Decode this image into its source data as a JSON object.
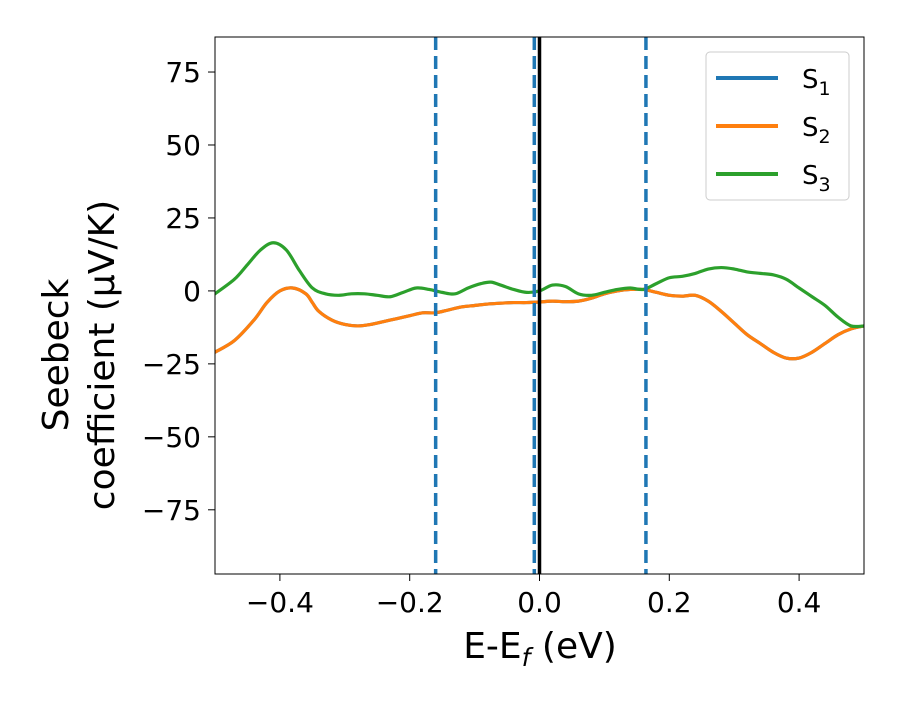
{
  "chart_data": {
    "type": "line",
    "xlabel": "E-E_f (eV)",
    "ylabel_line1": "Seebeck",
    "ylabel_line2": "coefficient  (μV/K)",
    "xlim": [
      -0.5,
      0.5
    ],
    "ylim": [
      -97,
      87
    ],
    "xticks": [
      -0.4,
      -0.2,
      0.0,
      0.2,
      0.4
    ],
    "xtick_labels": [
      "−0.4",
      "−0.2",
      "0.0",
      "0.2",
      "0.4"
    ],
    "yticks": [
      -75,
      -50,
      -25,
      0,
      25,
      50,
      75
    ],
    "ytick_labels": [
      "−75",
      "−50",
      "−25",
      "0",
      "25",
      "50",
      "75"
    ],
    "grid": false,
    "legend_position": "top-right",
    "vlines": [
      {
        "x": -0.16,
        "style": "dashed",
        "color": "#1f77b4"
      },
      {
        "x": -0.008,
        "style": "dashed",
        "color": "#1f77b4"
      },
      {
        "x": 0.0,
        "style": "solid",
        "color": "#000000"
      },
      {
        "x": 0.164,
        "style": "dashed",
        "color": "#1f77b4"
      }
    ],
    "series": [
      {
        "name": "S_1",
        "label_base": "S",
        "label_sub": "1",
        "color": "#1f77b4",
        "x": [
          -0.5,
          -0.47,
          -0.44,
          -0.42,
          -0.4,
          -0.38,
          -0.36,
          -0.35,
          -0.34,
          -0.32,
          -0.3,
          -0.28,
          -0.26,
          -0.24,
          -0.22,
          -0.2,
          -0.18,
          -0.16,
          -0.14,
          -0.12,
          -0.1,
          -0.08,
          -0.06,
          -0.04,
          -0.02,
          0.0,
          0.02,
          0.04,
          0.06,
          0.08,
          0.1,
          0.12,
          0.14,
          0.16,
          0.18,
          0.2,
          0.22,
          0.24,
          0.26,
          0.28,
          0.3,
          0.32,
          0.34,
          0.36,
          0.38,
          0.4,
          0.42,
          0.44,
          0.46,
          0.48,
          0.5
        ],
        "y": [
          -21,
          -17,
          -10,
          -4,
          0,
          1,
          -1,
          -4,
          -7,
          -10,
          -11.5,
          -12,
          -11.5,
          -10.5,
          -9.5,
          -8.5,
          -7.5,
          -7.5,
          -6.5,
          -5.5,
          -5,
          -4.5,
          -4.2,
          -4,
          -4,
          -3.8,
          -3.5,
          -3.7,
          -3.5,
          -2.5,
          -1,
          0,
          0.5,
          0.5,
          -0.5,
          -1.5,
          -1.8,
          -1.5,
          -3.5,
          -7,
          -11,
          -15,
          -18,
          -21,
          -23,
          -23,
          -21,
          -18,
          -15,
          -13,
          -12
        ]
      },
      {
        "name": "S_2",
        "label_base": "S",
        "label_sub": "2",
        "color": "#ff7f0e",
        "x": [
          -0.5,
          -0.47,
          -0.44,
          -0.42,
          -0.4,
          -0.38,
          -0.36,
          -0.35,
          -0.34,
          -0.32,
          -0.3,
          -0.28,
          -0.26,
          -0.24,
          -0.22,
          -0.2,
          -0.18,
          -0.16,
          -0.14,
          -0.12,
          -0.1,
          -0.08,
          -0.06,
          -0.04,
          -0.02,
          0.0,
          0.02,
          0.04,
          0.06,
          0.08,
          0.1,
          0.12,
          0.14,
          0.16,
          0.18,
          0.2,
          0.22,
          0.24,
          0.26,
          0.28,
          0.3,
          0.32,
          0.34,
          0.36,
          0.38,
          0.4,
          0.42,
          0.44,
          0.46,
          0.48,
          0.5
        ],
        "y": [
          -21,
          -17,
          -10,
          -4,
          0,
          1,
          -1,
          -4,
          -7,
          -10,
          -11.5,
          -12,
          -11.5,
          -10.5,
          -9.5,
          -8.5,
          -7.5,
          -7.5,
          -6.5,
          -5.5,
          -5,
          -4.5,
          -4.2,
          -4,
          -4,
          -3.8,
          -3.5,
          -3.7,
          -3.5,
          -2.5,
          -1,
          0,
          0.5,
          0.5,
          -0.5,
          -1.5,
          -1.8,
          -1.5,
          -3.5,
          -7,
          -11,
          -15,
          -18,
          -21,
          -23,
          -23,
          -21,
          -18,
          -15,
          -13,
          -12
        ]
      },
      {
        "name": "S_3",
        "label_base": "S",
        "label_sub": "3",
        "color": "#2ca02c",
        "x": [
          -0.5,
          -0.47,
          -0.45,
          -0.43,
          -0.41,
          -0.39,
          -0.37,
          -0.35,
          -0.33,
          -0.31,
          -0.29,
          -0.27,
          -0.25,
          -0.23,
          -0.21,
          -0.19,
          -0.17,
          -0.15,
          -0.13,
          -0.11,
          -0.09,
          -0.075,
          -0.06,
          -0.04,
          -0.02,
          0.0,
          0.02,
          0.04,
          0.06,
          0.08,
          0.1,
          0.12,
          0.14,
          0.16,
          0.18,
          0.2,
          0.22,
          0.24,
          0.26,
          0.28,
          0.3,
          0.32,
          0.34,
          0.36,
          0.38,
          0.4,
          0.42,
          0.44,
          0.46,
          0.48,
          0.5
        ],
        "y": [
          -1,
          4,
          9,
          14,
          16.5,
          14,
          7,
          1,
          -1,
          -1.5,
          -1,
          -1,
          -1.5,
          -2,
          -0.5,
          1,
          0.5,
          -0.5,
          -1,
          1,
          2.5,
          3,
          2,
          0.5,
          -0.5,
          0,
          2,
          1.5,
          -1,
          -1.5,
          -0.5,
          0.5,
          1,
          0.5,
          2.5,
          4.5,
          5,
          6,
          7.5,
          8,
          7.5,
          6.5,
          6,
          5.5,
          4,
          1,
          -2,
          -5,
          -9,
          -12,
          -12
        ]
      }
    ]
  }
}
